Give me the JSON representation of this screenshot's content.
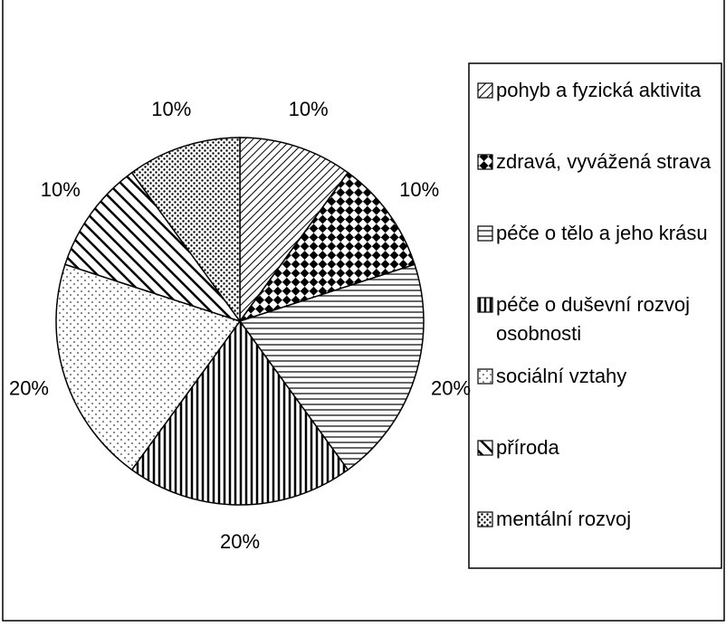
{
  "chart_data": {
    "type": "pie",
    "categories": [
      "pohyb a fyzická aktivita",
      "zdravá, vyvážená strava",
      "péče o tělo a jeho krásu",
      "péče o duševní rozvoj osobnosti",
      "sociální vztahy",
      "příroda",
      "mentální rozvoj"
    ],
    "values": [
      10,
      10,
      20,
      20,
      20,
      10,
      10
    ],
    "value_labels": [
      "10%",
      "10%",
      "20%",
      "20%",
      "20%",
      "10%",
      "10%"
    ],
    "legend": "right"
  }
}
